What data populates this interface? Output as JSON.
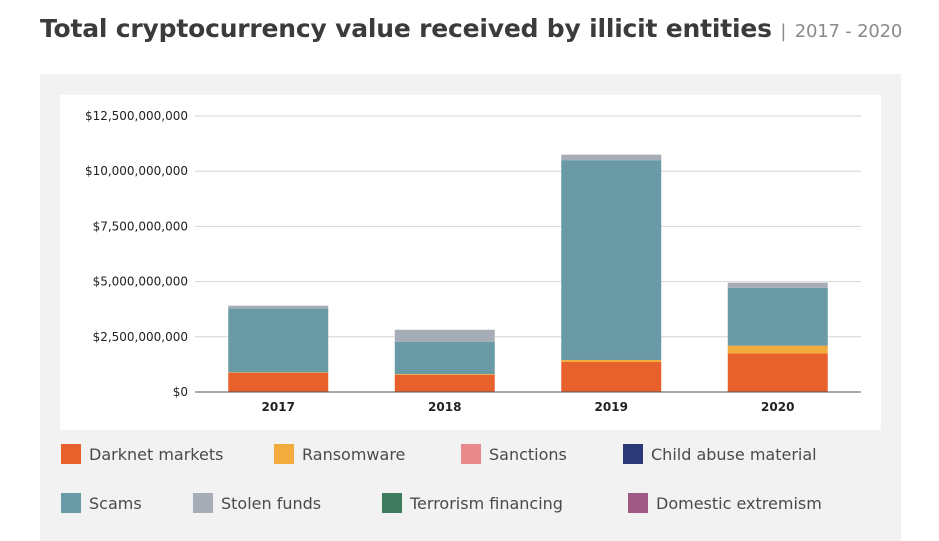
{
  "header": {
    "title": "Total cryptocurrency value received by illicit entities",
    "separator": "|",
    "subtitle": "2017 - 2020"
  },
  "chart_data": {
    "type": "bar",
    "stacked": true,
    "title": "Total cryptocurrency value received by illicit entities",
    "subtitle": "2017 - 2020",
    "xlabel": "",
    "ylabel": "",
    "ylim": [
      0,
      12500000000
    ],
    "yticks": [
      {
        "value": 0,
        "label": "$0"
      },
      {
        "value": 2500000000,
        "label": "$2,500,000,000"
      },
      {
        "value": 5000000000,
        "label": "$5,000,000,000"
      },
      {
        "value": 7500000000,
        "label": "$7,500,000,000"
      },
      {
        "value": 10000000000,
        "label": "$10,000,000,000"
      },
      {
        "value": 12500000000,
        "label": "$12,500,000,000"
      }
    ],
    "grid": true,
    "legend_position": "bottom",
    "categories": [
      "2017",
      "2018",
      "2019",
      "2020"
    ],
    "series": [
      {
        "name": "Darknet markets",
        "color": "#e8602c",
        "values": [
          880000000,
          770000000,
          1360000000,
          1750000000
        ]
      },
      {
        "name": "Ransomware",
        "color": "#f2ac3d",
        "values": [
          10000000,
          40000000,
          90000000,
          350000000
        ]
      },
      {
        "name": "Sanctions",
        "color": "#e8898b",
        "values": [
          0,
          0,
          0,
          0
        ]
      },
      {
        "name": "Child abuse material",
        "color": "#2b3a77",
        "values": [
          0,
          0,
          0,
          0
        ]
      },
      {
        "name": "Scams",
        "color": "#6a9aa6",
        "values": [
          2900000000,
          1470000000,
          9050000000,
          2620000000
        ]
      },
      {
        "name": "Stolen funds",
        "color": "#a7adb6",
        "values": [
          120000000,
          540000000,
          250000000,
          230000000
        ]
      },
      {
        "name": "Terrorism financing",
        "color": "#3e7a5e",
        "values": [
          0,
          0,
          0,
          0
        ]
      },
      {
        "name": "Domestic extremism",
        "color": "#9e5a82",
        "values": [
          0,
          0,
          0,
          0
        ]
      }
    ]
  }
}
